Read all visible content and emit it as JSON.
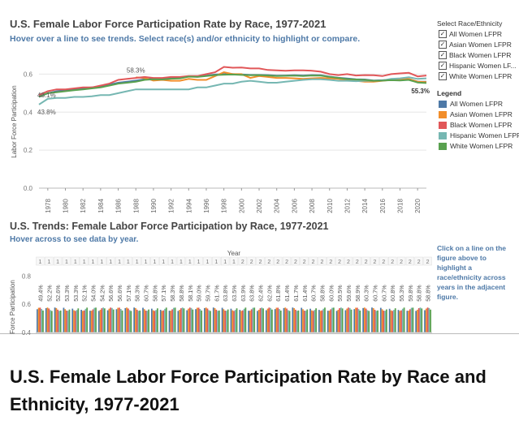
{
  "dashboard": {
    "top_title": "U.S. Female Labor Force Participation Rate by Race, 1977-2021",
    "top_subtitle": "Hover over a line to see trends. Select race(s) and/or ethnicity to highlight or compare.",
    "bottom_title": "U.S. Trends: Female Labor Force Participation by Race, 1977-2021",
    "bottom_subtitle": "Hover across to see data by year.",
    "note": "Click on a line on the figure above to highlight a race/ethnicity across years in the adjacent figure."
  },
  "filter": {
    "heading": "Select Race/Ethnicity",
    "items": [
      {
        "label": "All Women LFPR",
        "checked": "✓"
      },
      {
        "label": "Asian Women LFPR",
        "checked": "✓"
      },
      {
        "label": "Black Women LFPR",
        "checked": "✓"
      },
      {
        "label": "Hispanic Women LF...",
        "checked": "✓"
      },
      {
        "label": "White Women LFPR",
        "checked": "✓"
      }
    ]
  },
  "legend": {
    "heading": "Legend",
    "items": [
      {
        "label": "All Women LFPR",
        "color": "#4e79a7"
      },
      {
        "label": "Asian Women LFPR",
        "color": "#f28e2b"
      },
      {
        "label": "Black Women LFPR",
        "color": "#e15759"
      },
      {
        "label": "Hispanic Women LFPR",
        "color": "#76b7b2"
      },
      {
        "label": "White Women LFPR",
        "color": "#59a14f"
      }
    ]
  },
  "caption": "U.S. Female Labor Force Participation Rate by Race and Ethnicity, 1977-2021",
  "chart_data": [
    {
      "type": "line",
      "title": "U.S. Female Labor Force Participation Rate by Race, 1977-2021",
      "ylabel": "Labor Force Participation",
      "ylim": [
        0.0,
        0.7
      ],
      "yticks": [
        "0.0",
        "0.2",
        "0.4",
        "0.6"
      ],
      "xticks": [
        "1978",
        "1980",
        "1982",
        "1984",
        "1986",
        "1988",
        "1990",
        "1992",
        "1994",
        "1996",
        "1998",
        "2000",
        "2002",
        "2004",
        "2006",
        "2008",
        "2010",
        "2012",
        "2014",
        "2016",
        "2018",
        "2020"
      ],
      "x": [
        1977,
        1978,
        1979,
        1980,
        1981,
        1982,
        1983,
        1984,
        1985,
        1986,
        1987,
        1988,
        1989,
        1990,
        1991,
        1992,
        1993,
        1994,
        1995,
        1996,
        1997,
        1998,
        1999,
        2000,
        2001,
        2002,
        2003,
        2004,
        2005,
        2006,
        2007,
        2008,
        2009,
        2010,
        2011,
        2012,
        2013,
        2014,
        2015,
        2016,
        2017,
        2018,
        2019,
        2020,
        2021
      ],
      "series": [
        {
          "name": "All Women LFPR",
          "color": "#4e79a7",
          "values": [
            0.48,
            0.5,
            0.51,
            0.515,
            0.52,
            0.526,
            0.53,
            0.535,
            0.545,
            0.555,
            0.56,
            0.566,
            0.573,
            0.575,
            0.574,
            0.578,
            0.579,
            0.588,
            0.587,
            0.592,
            0.598,
            0.6,
            0.6,
            0.599,
            0.596,
            0.596,
            0.595,
            0.592,
            0.593,
            0.594,
            0.593,
            0.595,
            0.594,
            0.587,
            0.581,
            0.577,
            0.573,
            0.572,
            0.567,
            0.568,
            0.571,
            0.571,
            0.574,
            0.561,
            0.56
          ]
        },
        {
          "name": "Asian Women LFPR",
          "color": "#f28e2b",
          "values": [
            null,
            null,
            null,
            null,
            null,
            null,
            null,
            null,
            null,
            null,
            null,
            0.583,
            0.58,
            0.566,
            0.57,
            0.565,
            0.565,
            0.575,
            0.57,
            0.57,
            0.59,
            0.61,
            0.6,
            0.6,
            0.58,
            0.59,
            0.585,
            0.58,
            0.58,
            0.578,
            0.575,
            0.578,
            0.58,
            0.578,
            0.575,
            0.57,
            0.565,
            0.56,
            0.56,
            0.565,
            0.57,
            0.57,
            0.575,
            0.56,
            0.558
          ]
        },
        {
          "name": "Black Women LFPR",
          "color": "#e15759",
          "values": [
            0.49,
            0.51,
            0.52,
            0.52,
            0.525,
            0.53,
            0.53,
            0.54,
            0.55,
            0.57,
            0.575,
            0.58,
            0.585,
            0.58,
            0.58,
            0.585,
            0.585,
            0.59,
            0.59,
            0.6,
            0.61,
            0.638,
            0.634,
            0.635,
            0.63,
            0.63,
            0.622,
            0.62,
            0.618,
            0.62,
            0.62,
            0.618,
            0.613,
            0.6,
            0.595,
            0.6,
            0.593,
            0.595,
            0.594,
            0.59,
            0.6,
            0.604,
            0.607,
            0.588,
            0.593
          ]
        },
        {
          "name": "Hispanic Women LFPR",
          "color": "#76b7b2",
          "values": [
            0.44,
            0.47,
            0.475,
            0.475,
            0.48,
            0.48,
            0.483,
            0.49,
            0.49,
            0.5,
            0.51,
            0.52,
            0.52,
            0.52,
            0.52,
            0.52,
            0.52,
            0.52,
            0.53,
            0.53,
            0.54,
            0.55,
            0.55,
            0.56,
            0.565,
            0.56,
            0.555,
            0.555,
            0.56,
            0.565,
            0.57,
            0.573,
            0.573,
            0.57,
            0.565,
            0.565,
            0.563,
            0.565,
            0.565,
            0.567,
            0.575,
            0.578,
            0.584,
            0.575,
            0.578
          ]
        },
        {
          "name": "White Women LFPR",
          "color": "#59a14f",
          "values": [
            0.48,
            0.5,
            0.505,
            0.51,
            0.515,
            0.52,
            0.525,
            0.53,
            0.54,
            0.55,
            0.555,
            0.56,
            0.57,
            0.573,
            0.572,
            0.576,
            0.577,
            0.587,
            0.585,
            0.59,
            0.595,
            0.597,
            0.598,
            0.596,
            0.594,
            0.595,
            0.593,
            0.59,
            0.591,
            0.592,
            0.59,
            0.593,
            0.592,
            0.585,
            0.58,
            0.574,
            0.572,
            0.57,
            0.565,
            0.566,
            0.568,
            0.567,
            0.57,
            0.556,
            0.553
          ]
        }
      ],
      "annotations": [
        {
          "text": "58.3%",
          "x": 1988
        },
        {
          "text": "48.1%",
          "x": 1977
        },
        {
          "text": "43.8%",
          "x": 1977
        },
        {
          "text": "55.3%",
          "x": 2021
        }
      ]
    },
    {
      "type": "bar",
      "title": "U.S. Trends: Female Labor Force Participation by Race, 1977-2021",
      "header": "Year",
      "ylabel": "Labor Force Participation",
      "ylim": [
        0.4,
        0.9
      ],
      "yticks": [
        "0.4",
        "0.6",
        "0.8"
      ],
      "visible_ylabel": "r Force Participation",
      "x_short": [
        "1",
        "1",
        "1",
        "1",
        "1",
        "1",
        "1",
        "1",
        "1",
        "1",
        "1",
        "1",
        "1",
        "1",
        "1",
        "1",
        "1",
        "1",
        "1",
        "1",
        "1",
        "1",
        "1",
        "2",
        "2",
        "2",
        "2",
        "2",
        "2",
        "2",
        "2",
        "2",
        "2",
        "2",
        "2",
        "2",
        "2",
        "2",
        "2",
        "2",
        "2",
        "2",
        "2",
        "2",
        "2"
      ],
      "value_labels": [
        "49.4%",
        "52.2%",
        "52.6%",
        "53.3%",
        "53.3%",
        "52.1%",
        "54.0%",
        "54.2%",
        "56.6%",
        "56.6%",
        "57.1%",
        "58.3%",
        "60.7%",
        "58.8%",
        "57.1%",
        "58.3%",
        "58.8%",
        "58.1%",
        "59.0%",
        "59.7%",
        "61.7%",
        "63.8%",
        "63.5%",
        "63.9%",
        "63.8%",
        "62.4%",
        "62.0%",
        "61.8%",
        "61.4%",
        "61.7%",
        "61.4%",
        "60.7%",
        "58.8%",
        "60.0%",
        "59.5%",
        "59.6%",
        "58.9%",
        "60.3%",
        "60.7%",
        "60.7%",
        "60.8%",
        "55.3%",
        "59.8%",
        "58.8%",
        "58.8%"
      ],
      "series": [
        {
          "name": "All Women LFPR",
          "color": "#4e79a7"
        },
        {
          "name": "Asian Women LFPR",
          "color": "#f28e2b"
        },
        {
          "name": "Black Women LFPR",
          "color": "#e15759"
        },
        {
          "name": "Hispanic Women LFPR",
          "color": "#76b7b2"
        },
        {
          "name": "White Women LFPR",
          "color": "#59a14f"
        }
      ]
    }
  ]
}
